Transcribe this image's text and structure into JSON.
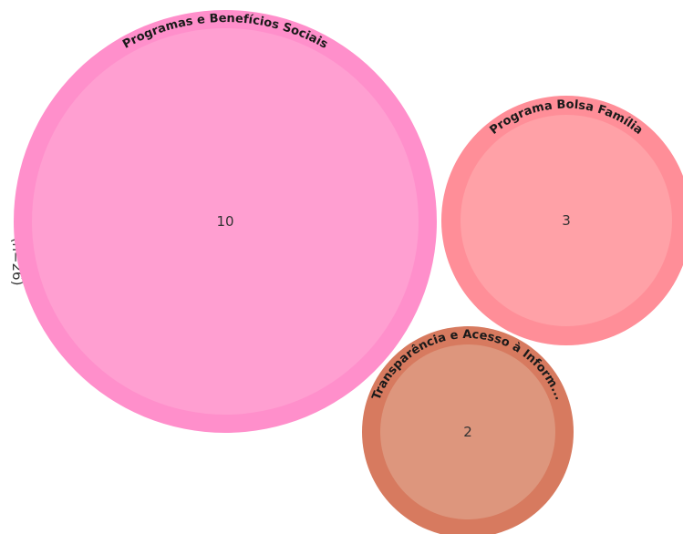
{
  "chart_data": {
    "type": "bubble",
    "side_label": "(n=26)",
    "bubbles": [
      {
        "label": "Programas e Benefícios Sociais",
        "value": 10,
        "outer_color": "#ff8fcb",
        "inner_color": "#ff9fd1"
      },
      {
        "label": "Programa Bolsa Família",
        "value": 3,
        "outer_color": "#ff8e98",
        "inner_color": "#ffa1a7"
      },
      {
        "label": "Transparência e Acesso à Inform...",
        "value": 2,
        "outer_color": "#d77a5f",
        "inner_color": "#dd967d"
      }
    ]
  }
}
